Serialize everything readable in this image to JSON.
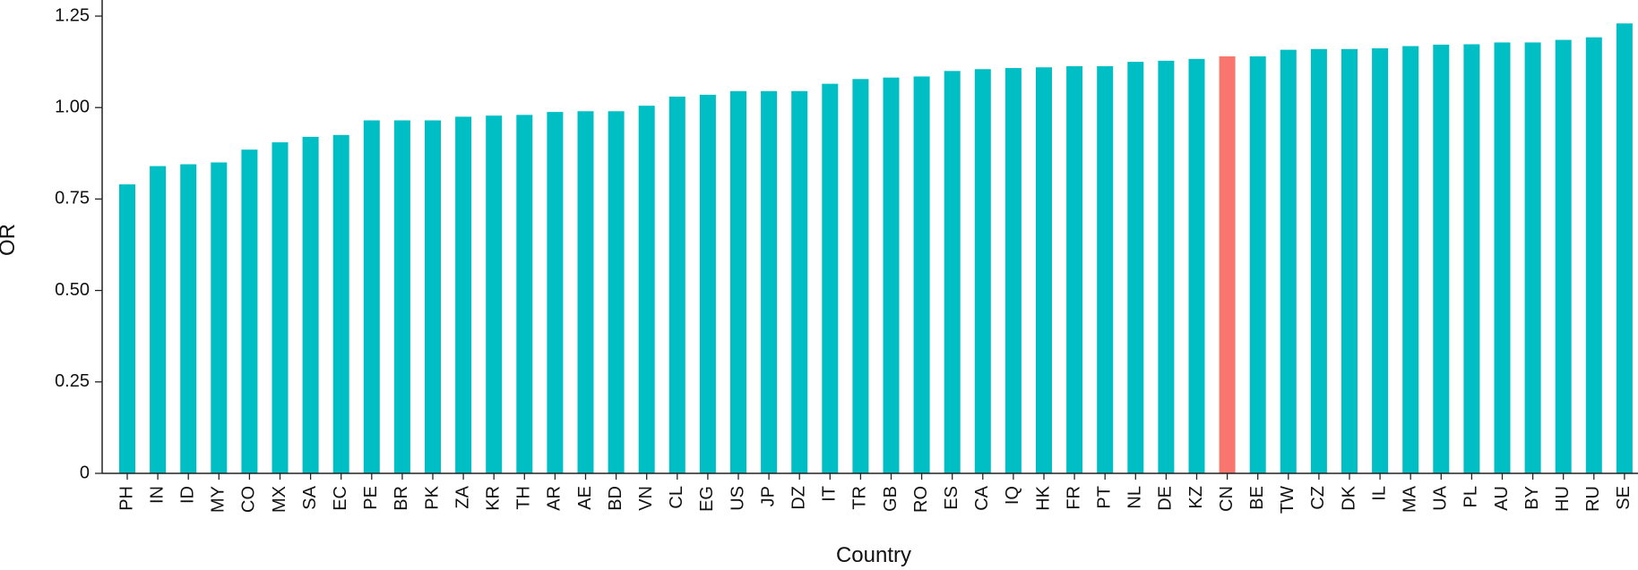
{
  "chart_data": {
    "type": "bar",
    "title": "",
    "xlabel": "Country",
    "ylabel": "OR",
    "ylim": [
      0,
      1.25
    ],
    "yticks": [
      0,
      0.25,
      0.5,
      0.75,
      1.0,
      1.25
    ],
    "ytick_labels": [
      "0",
      "0.25",
      "0.50",
      "0.75",
      "1.00",
      "1.25"
    ],
    "grid": false,
    "legend": "none",
    "colors": {
      "default": "#00BFC4",
      "highlight": "#F8766D"
    },
    "highlight_category": "CN",
    "categories": [
      "PH",
      "IN",
      "ID",
      "MY",
      "CO",
      "MX",
      "SA",
      "EC",
      "PE",
      "BR",
      "PK",
      "ZA",
      "KR",
      "TH",
      "AR",
      "AE",
      "BD",
      "VN",
      "CL",
      "EG",
      "US",
      "JP",
      "DZ",
      "IT",
      "TR",
      "GB",
      "RO",
      "ES",
      "CA",
      "IQ",
      "HK",
      "FR",
      "PT",
      "NL",
      "DE",
      "KZ",
      "CN",
      "BE",
      "TW",
      "CZ",
      "DK",
      "IL",
      "MA",
      "UA",
      "PL",
      "AU",
      "BY",
      "HU",
      "RU",
      "SE"
    ],
    "values": [
      0.79,
      0.84,
      0.845,
      0.85,
      0.885,
      0.905,
      0.92,
      0.925,
      0.965,
      0.965,
      0.965,
      0.975,
      0.978,
      0.98,
      0.988,
      0.99,
      0.99,
      1.005,
      1.03,
      1.035,
      1.045,
      1.045,
      1.045,
      1.065,
      1.078,
      1.082,
      1.085,
      1.1,
      1.105,
      1.108,
      1.11,
      1.113,
      1.113,
      1.125,
      1.128,
      1.133,
      1.14,
      1.14,
      1.158,
      1.16,
      1.16,
      1.162,
      1.168,
      1.172,
      1.173,
      1.178,
      1.178,
      1.185,
      1.192,
      1.23
    ]
  }
}
